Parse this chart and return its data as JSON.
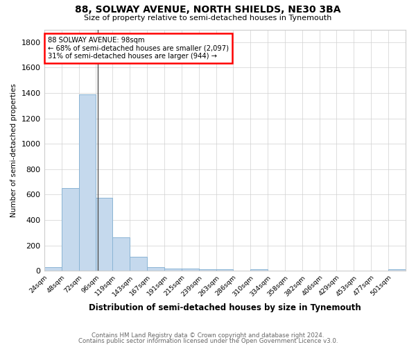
{
  "title": "88, SOLWAY AVENUE, NORTH SHIELDS, NE30 3BA",
  "subtitle": "Size of property relative to semi-detached houses in Tynemouth",
  "xlabel": "Distribution of semi-detached houses by size in Tynemouth",
  "ylabel": "Number of semi-detached properties",
  "annotation_line1": "88 SOLWAY AVENUE: 98sqm",
  "annotation_line2": "← 68% of semi-detached houses are smaller (2,097)",
  "annotation_line3": "31% of semi-detached houses are larger (944) →",
  "categories": [
    "24sqm",
    "48sqm",
    "72sqm",
    "96sqm",
    "119sqm",
    "143sqm",
    "167sqm",
    "191sqm",
    "215sqm",
    "239sqm",
    "263sqm",
    "286sqm",
    "310sqm",
    "334sqm",
    "358sqm",
    "382sqm",
    "406sqm",
    "429sqm",
    "453sqm",
    "477sqm",
    "501sqm"
  ],
  "bin_edges": [
    24,
    48,
    72,
    96,
    119,
    143,
    167,
    191,
    215,
    239,
    263,
    286,
    310,
    334,
    358,
    382,
    406,
    429,
    453,
    477,
    501,
    525
  ],
  "values": [
    30,
    650,
    1390,
    575,
    265,
    108,
    30,
    20,
    15,
    13,
    12,
    0,
    12,
    0,
    0,
    0,
    0,
    0,
    0,
    0,
    12
  ],
  "bar_color": "#c5d9ed",
  "bar_edge_color": "#8ab4d4",
  "property_line_x": 98,
  "ylim": [
    0,
    1900
  ],
  "yticks": [
    0,
    200,
    400,
    600,
    800,
    1000,
    1200,
    1400,
    1600,
    1800
  ],
  "footer_line1": "Contains HM Land Registry data © Crown copyright and database right 2024.",
  "footer_line2": "Contains public sector information licensed under the Open Government Licence v3.0.",
  "background_color": "#ffffff",
  "grid_color": "#d0d0d0"
}
